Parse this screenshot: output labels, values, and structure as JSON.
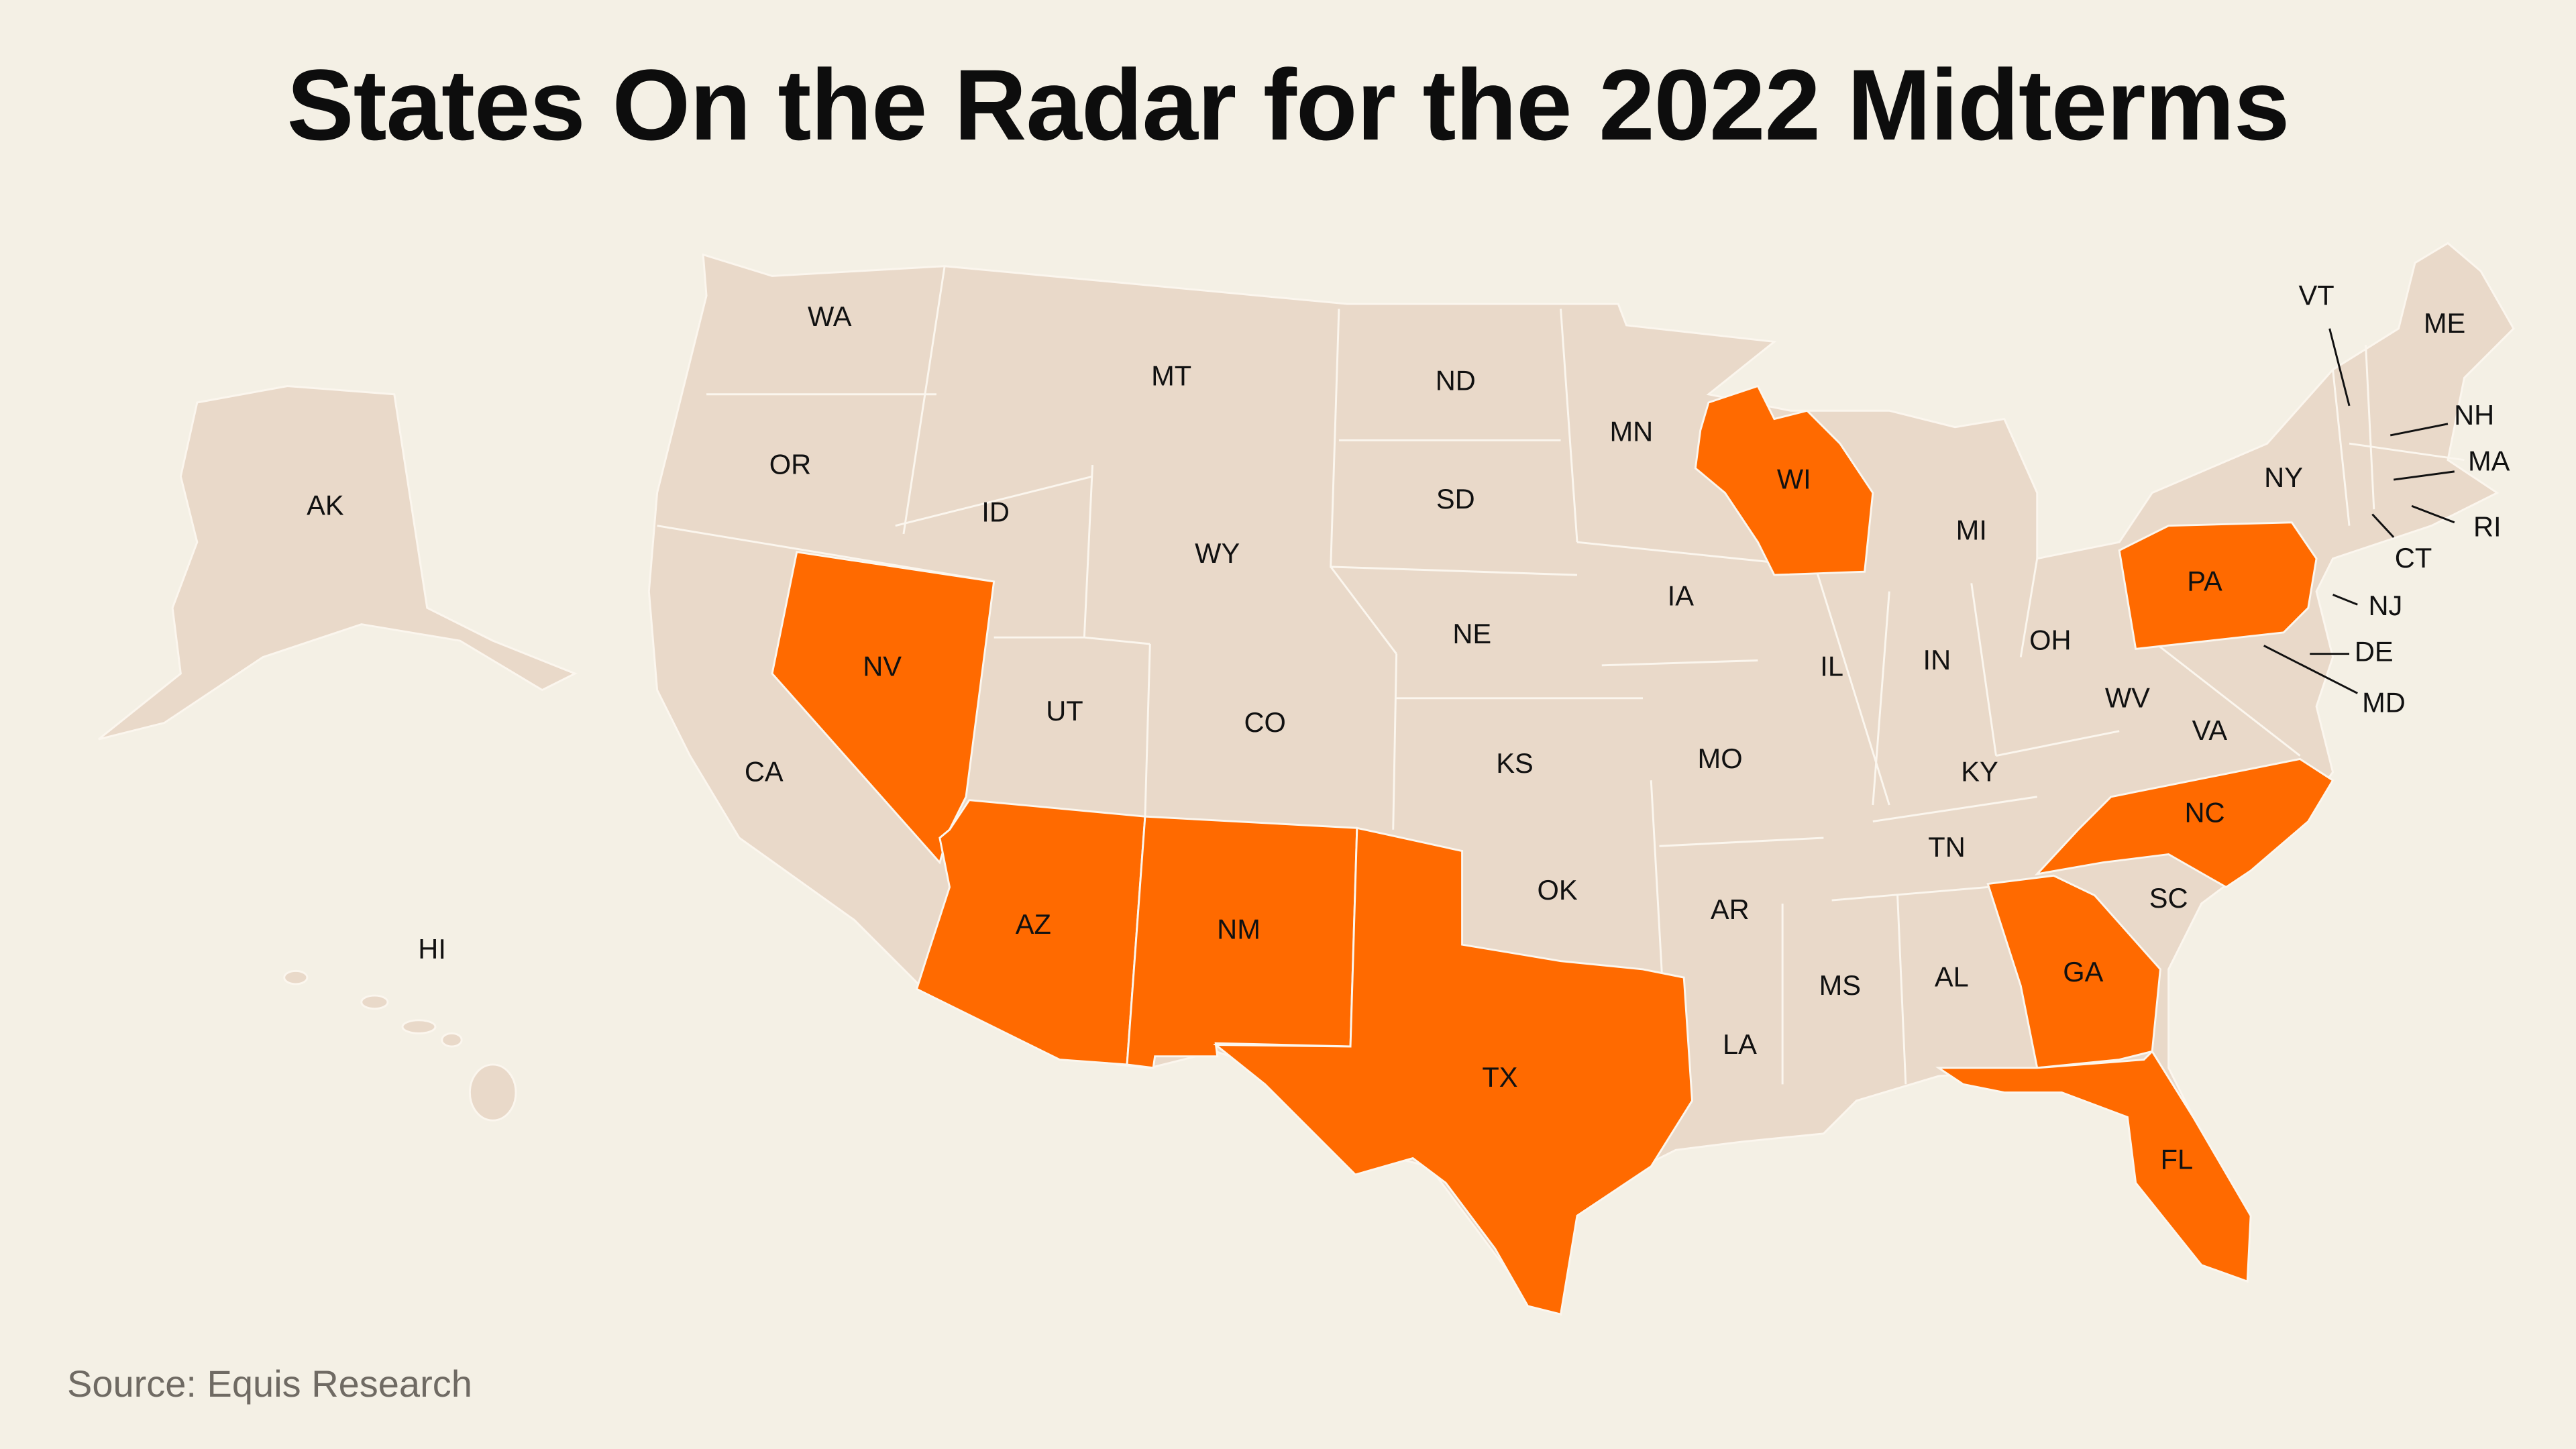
{
  "title": "States On the Radar for the 2022 Midterms",
  "source": "Source: Equis Research",
  "colors": {
    "background": "#f4f0e5",
    "state": "#e9d9c9",
    "highlighted": "#ff6a00",
    "border": "#fbf6ee"
  },
  "highlighted_states": [
    "NV",
    "AZ",
    "NM",
    "TX",
    "WI",
    "PA",
    "NC",
    "GA",
    "FL"
  ],
  "state_labels": [
    "WA",
    "OR",
    "CA",
    "AK",
    "HI",
    "ID",
    "NV",
    "MT",
    "WY",
    "UT",
    "AZ",
    "CO",
    "NM",
    "ND",
    "SD",
    "NE",
    "KS",
    "OK",
    "TX",
    "MN",
    "IA",
    "MO",
    "AR",
    "LA",
    "WI",
    "IL",
    "MI",
    "IN",
    "OH",
    "KY",
    "TN",
    "MS",
    "AL",
    "GA",
    "FL",
    "SC",
    "NC",
    "VA",
    "WV",
    "PA",
    "NY",
    "VT",
    "ME",
    "NH",
    "MA",
    "RI",
    "CT",
    "NJ",
    "DE",
    "MD"
  ]
}
